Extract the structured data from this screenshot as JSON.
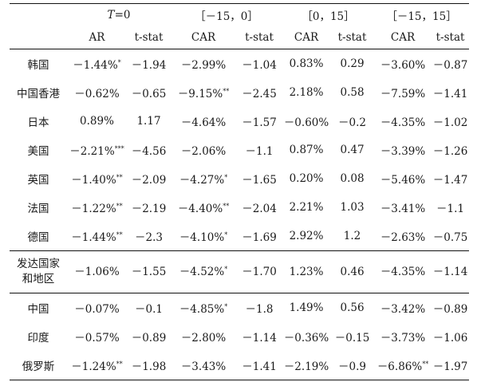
{
  "header": {
    "group1_t": "T",
    "group1_rest": "=0",
    "group2": "［－15，0］",
    "group3": "［0，15］",
    "group4": "［－15，15］",
    "sub": [
      "AR",
      "t-stat",
      "CAR",
      "t-stat",
      "CAR",
      "t-stat",
      "CAR",
      "t-stat"
    ]
  },
  "rows": [
    {
      "label": "韩国",
      "cells": [
        [
          "－1.44%",
          "*"
        ],
        [
          "－1.94",
          ""
        ],
        [
          "－2.99%",
          ""
        ],
        [
          "－1.04",
          ""
        ],
        [
          "0.83%",
          ""
        ],
        [
          "0.29",
          ""
        ],
        [
          "－3.60%",
          ""
        ],
        [
          "－0.87",
          ""
        ]
      ]
    },
    {
      "label": "中国香港",
      "cells": [
        [
          "－0.62%",
          ""
        ],
        [
          "－0.65",
          ""
        ],
        [
          "－9.15%",
          "**"
        ],
        [
          "－2.45",
          ""
        ],
        [
          "2.18%",
          ""
        ],
        [
          "0.58",
          ""
        ],
        [
          "－7.59%",
          ""
        ],
        [
          "－1.41",
          ""
        ]
      ]
    },
    {
      "label": "日本",
      "cells": [
        [
          "0.89%",
          ""
        ],
        [
          "1.17",
          ""
        ],
        [
          "－4.64%",
          ""
        ],
        [
          "－1.57",
          ""
        ],
        [
          "－0.60%",
          ""
        ],
        [
          "－0.2",
          ""
        ],
        [
          "－4.35%",
          ""
        ],
        [
          "－1.02",
          ""
        ]
      ]
    },
    {
      "label": "美国",
      "cells": [
        [
          "－2.21%",
          "***"
        ],
        [
          "－4.56",
          ""
        ],
        [
          "－2.06%",
          ""
        ],
        [
          "－1.1",
          ""
        ],
        [
          "0.87%",
          ""
        ],
        [
          "0.47",
          ""
        ],
        [
          "－3.39%",
          ""
        ],
        [
          "－1.26",
          ""
        ]
      ]
    },
    {
      "label": "英国",
      "cells": [
        [
          "－1.40%",
          "**"
        ],
        [
          "－2.09",
          ""
        ],
        [
          "－4.27%",
          "*"
        ],
        [
          "－1.65",
          ""
        ],
        [
          "0.20%",
          ""
        ],
        [
          "0.08",
          ""
        ],
        [
          "－5.46%",
          ""
        ],
        [
          "－1.47",
          ""
        ]
      ]
    },
    {
      "label": "法国",
      "cells": [
        [
          "－1.22%",
          "**"
        ],
        [
          "－2.19",
          ""
        ],
        [
          "－4.40%",
          "**"
        ],
        [
          "－2.04",
          ""
        ],
        [
          "2.21%",
          ""
        ],
        [
          "1.03",
          ""
        ],
        [
          "－3.41%",
          ""
        ],
        [
          "－1.1",
          ""
        ]
      ]
    },
    {
      "label": "德国",
      "cells": [
        [
          "－1.44%",
          "**"
        ],
        [
          "－2.3",
          ""
        ],
        [
          "－4.10%",
          "*"
        ],
        [
          "－1.69",
          ""
        ],
        [
          "2.92%",
          ""
        ],
        [
          "1.2",
          ""
        ],
        [
          "－2.63%",
          ""
        ],
        [
          "－0.75",
          ""
        ]
      ]
    },
    {
      "label": "发达国家\n和地区",
      "label1": "发达国家",
      "label2": "和地区",
      "cells": [
        [
          "－1.06%",
          ""
        ],
        [
          "－1.55",
          ""
        ],
        [
          "－4.52%",
          "*"
        ],
        [
          "－1.70",
          ""
        ],
        [
          "1.23%",
          ""
        ],
        [
          "0.46",
          ""
        ],
        [
          "－4.35%",
          ""
        ],
        [
          "－1.14",
          ""
        ]
      ]
    },
    {
      "label": "中国",
      "cells": [
        [
          "－0.07%",
          ""
        ],
        [
          "－0.1",
          ""
        ],
        [
          "－4.85%",
          "*"
        ],
        [
          "－1.8",
          ""
        ],
        [
          "1.49%",
          ""
        ],
        [
          "0.56",
          ""
        ],
        [
          "－3.42%",
          ""
        ],
        [
          "－0.89",
          ""
        ]
      ]
    },
    {
      "label": "印度",
      "cells": [
        [
          "－0.57%",
          ""
        ],
        [
          "－0.89",
          ""
        ],
        [
          "－2.80%",
          ""
        ],
        [
          "－1.14",
          ""
        ],
        [
          "－0.36%",
          ""
        ],
        [
          "－0.15",
          ""
        ],
        [
          "－3.73%",
          ""
        ],
        [
          "－1.06",
          ""
        ]
      ]
    },
    {
      "label": "俄罗斯",
      "cells": [
        [
          "－1.24%",
          "**"
        ],
        [
          "－1.98",
          ""
        ],
        [
          "－3.43%",
          ""
        ],
        [
          "－1.41",
          ""
        ],
        [
          "－2.19%",
          ""
        ],
        [
          "－0.9",
          ""
        ],
        [
          "－6.86%",
          "**"
        ],
        [
          "－1.97",
          ""
        ]
      ]
    }
  ]
}
